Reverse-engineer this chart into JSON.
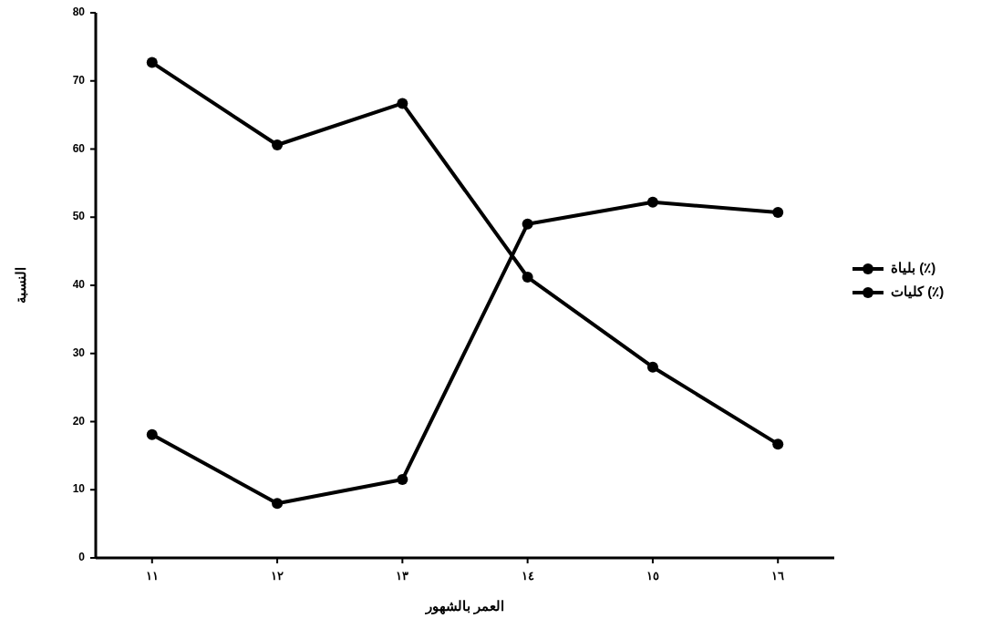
{
  "chart_data": {
    "type": "line",
    "xlabel": "العمر بالشهور",
    "ylabel": "النسبة",
    "categories": [
      "١١",
      "١٢",
      "١٣",
      "١٤",
      "١٥",
      "١٦"
    ],
    "series": [
      {
        "name": "بلياة (٪)",
        "color": "#000000",
        "values": [
          72.7,
          60.6,
          66.7,
          41.2,
          28.0,
          16.7
        ]
      },
      {
        "name": "كليات (٪)",
        "color": "#000000",
        "values": [
          18.1,
          8.0,
          11.5,
          49.0,
          52.2,
          50.7
        ]
      }
    ],
    "ylim": [
      0,
      80
    ],
    "yticks": [
      0,
      10,
      20,
      30,
      40,
      50,
      60,
      70,
      80
    ],
    "grid": false,
    "legend": "right",
    "marker": "circle",
    "line_style": "solid"
  }
}
